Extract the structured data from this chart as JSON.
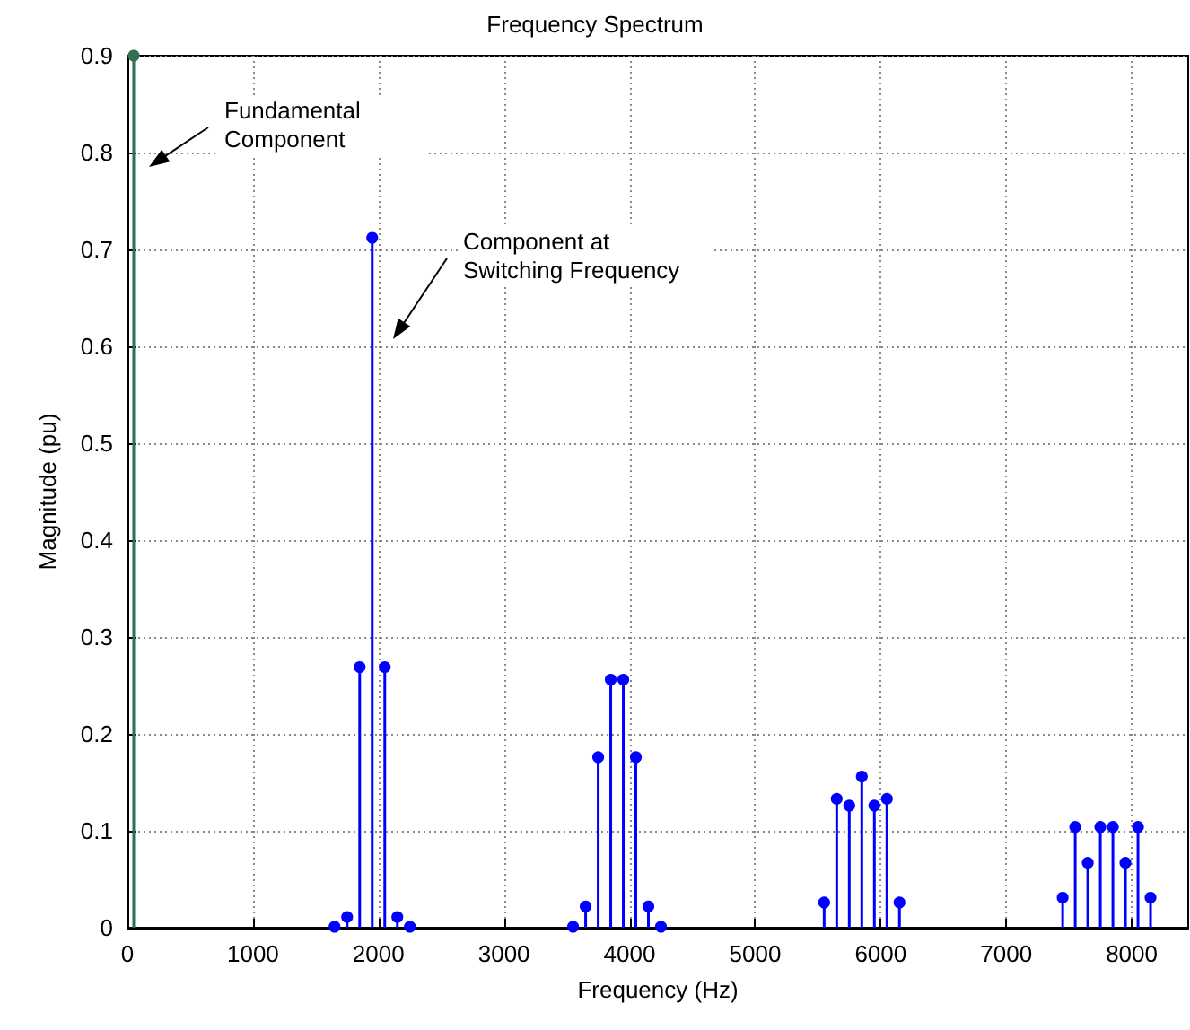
{
  "chart_data": {
    "type": "lollipop",
    "title": "Frequency Spectrum",
    "xlabel": "Frequency (Hz)",
    "ylabel": "Magnitude (pu)",
    "series": [
      {
        "color": "#2e7050",
        "x": [
          50
        ],
        "values": [
          0.9
        ]
      },
      {
        "color": "#0000ff",
        "x": [
          1650,
          1750,
          1850,
          1950,
          2050,
          2150,
          2250,
          3550,
          3650,
          3750,
          3850,
          3950,
          4050,
          4150,
          4250,
          5550,
          5650,
          5750,
          5850,
          5950,
          6050,
          6150,
          7450,
          7550,
          7650,
          7750,
          7850,
          7950,
          8050,
          8150
        ],
        "values": [
          0.001,
          0.011,
          0.269,
          0.712,
          0.269,
          0.011,
          0.001,
          0.001,
          0.022,
          0.176,
          0.256,
          0.256,
          0.176,
          0.022,
          0.001,
          0.026,
          0.133,
          0.126,
          0.156,
          0.126,
          0.133,
          0.026,
          0.031,
          0.104,
          0.067,
          0.104,
          0.104,
          0.067,
          0.104,
          0.031
        ]
      }
    ],
    "annotations": [
      "Fundamental Component",
      "Component at Switching Frequency"
    ],
    "xlim": [
      0,
      8450
    ],
    "xticks": [
      0,
      1000,
      2000,
      3000,
      4000,
      5000,
      6000,
      7000,
      8000
    ],
    "ylim": [
      0,
      0.9
    ],
    "yticks": [
      0,
      0.1,
      0.2,
      0.3,
      0.4,
      0.5,
      0.6,
      0.7,
      0.8,
      0.9
    ],
    "grid": true,
    "marker": "circle"
  }
}
